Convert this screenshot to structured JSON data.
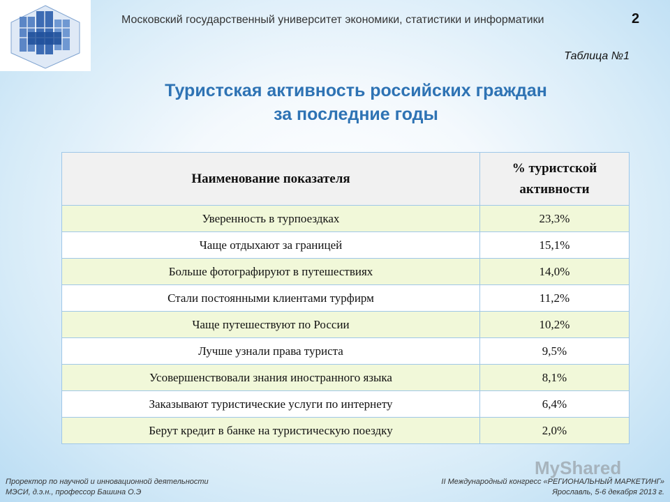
{
  "header": {
    "university": "Московский государственный университет экономики, статистики и информатики",
    "page_number": "2",
    "table_caption": "Таблица №1"
  },
  "title": {
    "line1": "Туристская активность российских граждан",
    "line2": "за последние годы"
  },
  "table": {
    "headers": [
      "Наименование показателя",
      "% туристской активности"
    ],
    "rows": [
      {
        "label": "Уверенность в турпоездках",
        "value": "23,3%"
      },
      {
        "label": "Чаще отдыхают за границей",
        "value": "15,1%"
      },
      {
        "label": "Больше фотографируют в путешествиях",
        "value": "14,0%"
      },
      {
        "label": "Стали постоянными клиентами турфирм",
        "value": "11,2%"
      },
      {
        "label": "Чаще путешествуют по России",
        "value": "10,2%"
      },
      {
        "label": "Лучше узнали права туриста",
        "value": "9,5%"
      },
      {
        "label": "Усовершенствовали знания иностранного языка",
        "value": "8,1%"
      },
      {
        "label": "Заказывают туристические услуги по интернету",
        "value": "6,4%"
      },
      {
        "label": "Берут кредит в банке на туристическую поездку",
        "value": "2,0%"
      }
    ]
  },
  "footer": {
    "left_line1": "Проректор по научной и инновационной деятельности",
    "left_line2": "МЭСИ, д.э.н., профессор Башина О.Э",
    "right_line1": "II Международный конгресс «РЕГИОНАЛЬНЫЙ МАРКЕТИНГ»",
    "right_line2": "Ярославль, 5-6 декабря 2013 г."
  },
  "watermark": "MyShared",
  "colors": {
    "title": "#2e73b4",
    "row_alt": "#f1f8d9",
    "header_bg": "#f1f1f1",
    "border": "#9fc7e8"
  },
  "icons": {
    "logo": "mesi-logo-icon"
  }
}
